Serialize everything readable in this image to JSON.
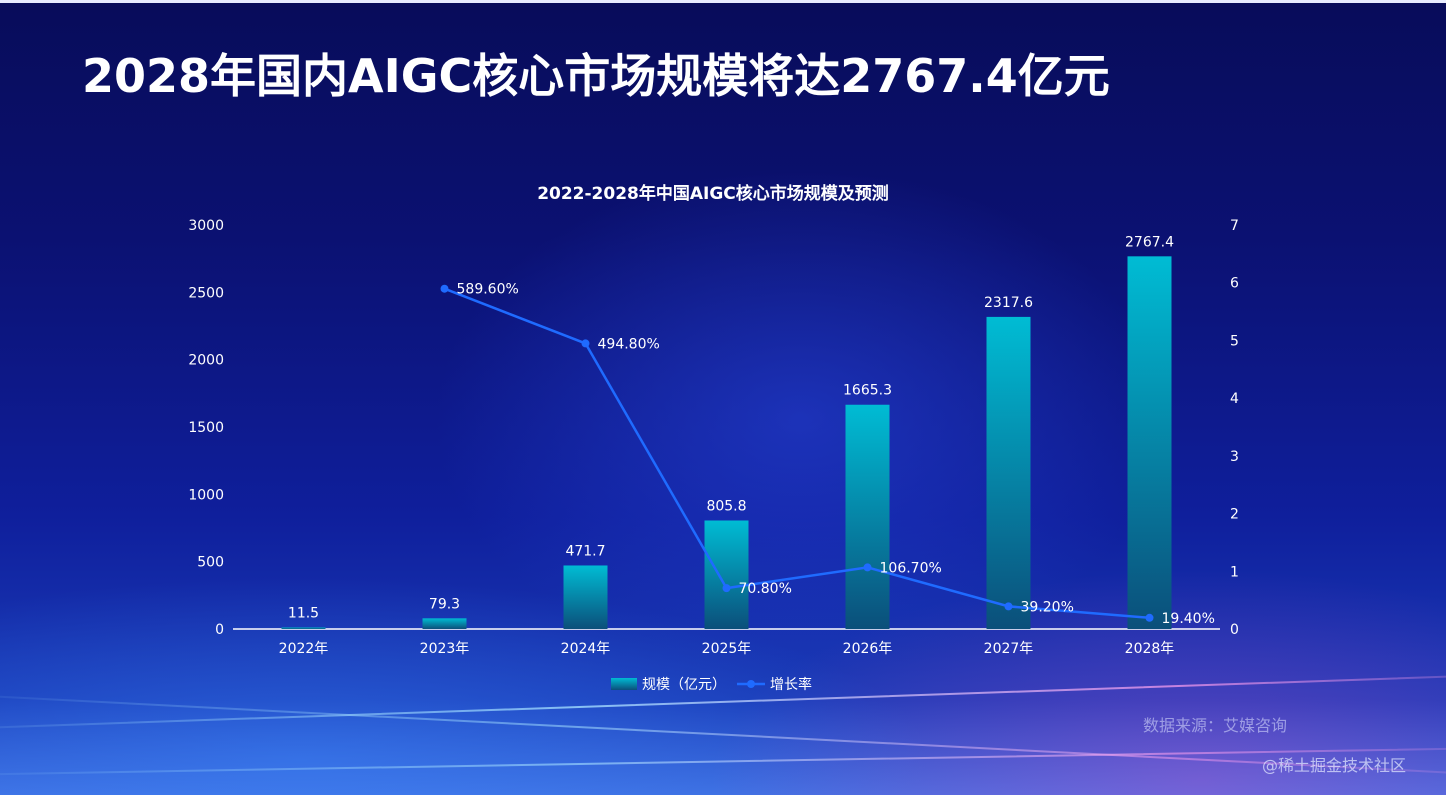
{
  "page": {
    "title": "2028年国内AIGC核心市场规模将达2767.4亿元",
    "source": "数据来源：艾媒咨询",
    "watermark": "@稀土掘金技术社区"
  },
  "colors": {
    "bar_top": "#00bcd4",
    "bar_bottom": "#0b4f7a",
    "line": "#1f6bff",
    "text": "#ffffff"
  },
  "chart_data": {
    "type": "bar",
    "title": "2022-2028年中国AIGC核心市场规模及预测",
    "categories": [
      "2022年",
      "2023年",
      "2024年",
      "2025年",
      "2026年",
      "2027年",
      "2028年"
    ],
    "series": [
      {
        "name": "规模（亿元）",
        "type": "bar",
        "axis": "left",
        "values": [
          11.5,
          79.3,
          471.7,
          805.8,
          1665.3,
          2317.6,
          2767.4
        ],
        "labels": [
          "11.5",
          "79.3",
          "471.7",
          "805.8",
          "1665.3",
          "2317.6",
          "2767.4"
        ]
      },
      {
        "name": "增长率",
        "type": "line",
        "axis": "right",
        "values": [
          null,
          5.896,
          4.948,
          0.708,
          1.067,
          0.392,
          0.194
        ],
        "labels": [
          "",
          "589.60%",
          "494.80%",
          "70.80%",
          "106.70%",
          "39.20%",
          "19.40%"
        ]
      }
    ],
    "y_left": {
      "lim": [
        0,
        3000
      ],
      "ticks": [
        0,
        500,
        1000,
        1500,
        2000,
        2500,
        3000
      ]
    },
    "y_right": {
      "lim": [
        0,
        7
      ],
      "ticks": [
        0,
        1,
        2,
        3,
        4,
        5,
        6,
        7
      ]
    },
    "legend": "bottom-center",
    "grid": false
  }
}
